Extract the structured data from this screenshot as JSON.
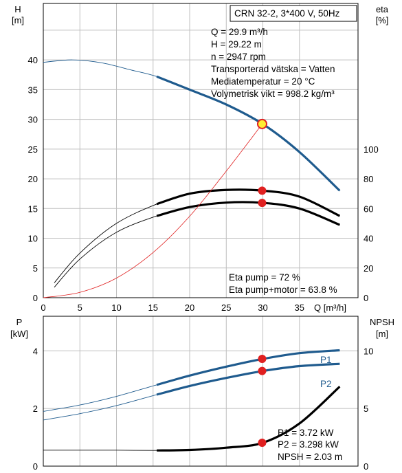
{
  "title": "CRN 32-2, 3*400 V, 50Hz",
  "info_lines": [
    "Q = 29.9 m³/h",
    "H = 29.22 m",
    "n = 2947 rpm",
    "Transporterad vätska = Vatten",
    "Mediatemperatur = 20 °C",
    "Volymetrisk vikt = 998.2 kg/m³"
  ],
  "eta_lines": [
    "Eta pump = 72 %",
    "Eta pump+motor = 63.8 %"
  ],
  "power_lines": [
    "P1 = 3.72 kW",
    "P2 = 3.298 kW",
    "NPSH = 2.03 m"
  ],
  "axis_labels": {
    "top_left_1": "H",
    "top_left_2": "[m]",
    "top_right_1": "eta",
    "top_right_2": "[%]",
    "x": "Q [m³/h]",
    "bottom_left_1": "P",
    "bottom_left_2": "[kW]",
    "bottom_right_1": "NPSH",
    "bottom_right_2": "[m]"
  },
  "colors": {
    "blue": "#1f5b8e",
    "red": "#e02020",
    "grid": "#bfbfbf",
    "marker_fill": "#ffee33"
  },
  "chart_data": [
    {
      "type": "line",
      "panel": "top",
      "x_ticks": [
        0,
        5,
        10,
        15,
        20,
        25,
        30,
        35
      ],
      "xlim": [
        0,
        43
      ],
      "left_ticks": [
        0,
        5,
        10,
        15,
        20,
        25,
        30,
        35,
        40
      ],
      "ylim_left": [
        0,
        49.5
      ],
      "right_ticks": [
        0,
        20,
        40,
        60,
        80,
        100
      ],
      "ylim_right": [
        0,
        198
      ],
      "series": [
        {
          "axis": "left",
          "color": "#1f5b8e",
          "x": [
            0,
            4,
            8,
            12,
            15.5,
            20,
            25,
            30,
            35,
            40.5
          ],
          "y": [
            39.6,
            40,
            39.5,
            38.3,
            37.2,
            35,
            32.5,
            29.2,
            24.5,
            18
          ]
        },
        {
          "axis": "right",
          "color": "#000000",
          "x": [
            1.5,
            5,
            10,
            15.5,
            20,
            25,
            30,
            35,
            40.5
          ],
          "y": [
            10,
            30,
            50,
            63,
            70,
            72.5,
            72,
            68,
            55
          ]
        },
        {
          "axis": "right",
          "color": "#000000",
          "x": [
            1.5,
            5,
            10,
            15.5,
            20,
            25,
            30,
            35,
            40.5
          ],
          "y": [
            7,
            26,
            44,
            55,
            61,
            64,
            63.8,
            60,
            49
          ]
        },
        {
          "axis": "left",
          "color": "#e02020",
          "x": [
            0,
            5,
            10,
            15,
            20,
            25,
            29.9
          ],
          "y": [
            0,
            0.9,
            3.3,
            7.6,
            13.7,
            21.3,
            29.2
          ]
        }
      ],
      "points": [
        {
          "axis": "left",
          "x": 29.9,
          "y": 29.22,
          "style": "duty"
        },
        {
          "axis": "right",
          "x": 29.9,
          "y": 72,
          "style": "red"
        },
        {
          "axis": "right",
          "x": 29.9,
          "y": 63.8,
          "style": "red"
        }
      ]
    },
    {
      "type": "line",
      "panel": "bottom",
      "xlim": [
        0,
        43
      ],
      "left_ticks": [
        0,
        2,
        4
      ],
      "ylim_left": [
        0,
        5.2
      ],
      "right_ticks": [
        0,
        5,
        10
      ],
      "ylim_right": [
        0,
        13
      ],
      "series": [
        {
          "name": "P1",
          "axis": "left",
          "color": "#1f5b8e",
          "x": [
            0,
            5,
            10,
            15.5,
            20,
            25,
            30,
            35,
            40.5
          ],
          "y": [
            1.9,
            2.12,
            2.42,
            2.82,
            3.14,
            3.45,
            3.72,
            3.92,
            4.02
          ]
        },
        {
          "name": "P2",
          "axis": "left",
          "color": "#1f5b8e",
          "x": [
            0,
            5,
            10,
            15.5,
            20,
            25,
            30,
            35,
            40.5
          ],
          "y": [
            1.6,
            1.82,
            2.1,
            2.48,
            2.78,
            3.06,
            3.3,
            3.47,
            3.55
          ]
        },
        {
          "axis": "right",
          "color": "#000000",
          "x": [
            0,
            5,
            10,
            15.5,
            20,
            25,
            30,
            35,
            40.5
          ],
          "y": [
            1.38,
            1.38,
            1.38,
            1.36,
            1.4,
            1.6,
            2.03,
            3.7,
            6.9
          ]
        }
      ],
      "points": [
        {
          "axis": "left",
          "x": 29.9,
          "y": 3.72,
          "style": "red"
        },
        {
          "axis": "left",
          "x": 29.9,
          "y": 3.3,
          "style": "red"
        },
        {
          "axis": "right",
          "x": 29.9,
          "y": 2.03,
          "style": "red"
        }
      ]
    }
  ]
}
